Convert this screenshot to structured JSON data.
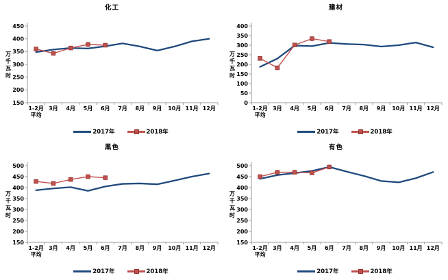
{
  "page": {
    "background": "#ffffff",
    "axis_color": "#999999",
    "text_color": "#000000"
  },
  "chart_data": [
    {
      "id": "huagong",
      "type": "line",
      "title": "化工",
      "ylabel": "万千瓦时",
      "xlabel": "",
      "categories": [
        "1-2月\n平均",
        "3月",
        "4月",
        "5月",
        "6月",
        "7月",
        "8月",
        "9月",
        "10月",
        "11月",
        "12月"
      ],
      "ylim": [
        150,
        450
      ],
      "yticks": [
        150,
        200,
        250,
        300,
        350,
        400,
        450
      ],
      "grid": false,
      "legend_position": "bottom",
      "series": [
        {
          "name": "2017年",
          "color": "#1F497D",
          "marker": "none",
          "values": [
            348,
            358,
            364,
            362,
            371,
            382,
            370,
            354,
            370,
            390,
            400
          ]
        },
        {
          "name": "2018年",
          "color": "#C0504D",
          "marker": "square",
          "marker_border": "#943634",
          "values": [
            360,
            343,
            364,
            378,
            375
          ]
        }
      ]
    },
    {
      "id": "jiancai",
      "type": "line",
      "title": "建材",
      "ylabel": "万千瓦时",
      "xlabel": "",
      "categories": [
        "1-2月\n平均",
        "3月",
        "4月",
        "5月",
        "6月",
        "7月",
        "8月",
        "9月",
        "10月",
        "11月",
        "12月"
      ],
      "ylim": [
        0,
        400
      ],
      "yticks": [
        0,
        50,
        100,
        150,
        200,
        250,
        300,
        350,
        400
      ],
      "grid": false,
      "legend_position": "bottom",
      "series": [
        {
          "name": "2017年",
          "color": "#1F497D",
          "marker": "none",
          "values": [
            187,
            230,
            298,
            295,
            312,
            306,
            303,
            293,
            300,
            314,
            289
          ]
        },
        {
          "name": "2018年",
          "color": "#C0504D",
          "marker": "square",
          "marker_border": "#943634",
          "values": [
            231,
            182,
            301,
            334,
            319
          ]
        }
      ]
    },
    {
      "id": "heise",
      "type": "line",
      "title": "黑色",
      "ylabel": "万千瓦时",
      "xlabel": "",
      "categories": [
        "1-2月\n平均",
        "3月",
        "4月",
        "5月",
        "6月",
        "7月",
        "8月",
        "9月",
        "10月",
        "11月",
        "12月"
      ],
      "ylim": [
        150,
        500
      ],
      "yticks": [
        150,
        200,
        250,
        300,
        350,
        400,
        450,
        500
      ],
      "grid": false,
      "legend_position": "bottom",
      "series": [
        {
          "name": "2017年",
          "color": "#1F497D",
          "marker": "none",
          "values": [
            388,
            396,
            402,
            385,
            405,
            417,
            419,
            415,
            432,
            450,
            464
          ]
        },
        {
          "name": "2018年",
          "color": "#C0504D",
          "marker": "square",
          "marker_border": "#943634",
          "values": [
            428,
            419,
            437,
            450,
            445
          ]
        }
      ]
    },
    {
      "id": "youse",
      "type": "line",
      "title": "有色",
      "ylabel": "万千瓦时",
      "xlabel": "",
      "categories": [
        "1-2月\n平均",
        "3月",
        "4月",
        "5月",
        "6月",
        "7月",
        "8月",
        "9月",
        "10月",
        "11月",
        "12月"
      ],
      "ylim": [
        150,
        500
      ],
      "yticks": [
        150,
        200,
        250,
        300,
        350,
        400,
        450,
        500
      ],
      "grid": false,
      "legend_position": "bottom",
      "series": [
        {
          "name": "2017年",
          "color": "#1F497D",
          "marker": "none",
          "values": [
            440,
            457,
            466,
            476,
            494,
            473,
            453,
            430,
            424,
            443,
            471
          ]
        },
        {
          "name": "2018年",
          "color": "#C0504D",
          "marker": "square",
          "marker_border": "#943634",
          "values": [
            450,
            470,
            470,
            467,
            494
          ]
        }
      ]
    }
  ]
}
